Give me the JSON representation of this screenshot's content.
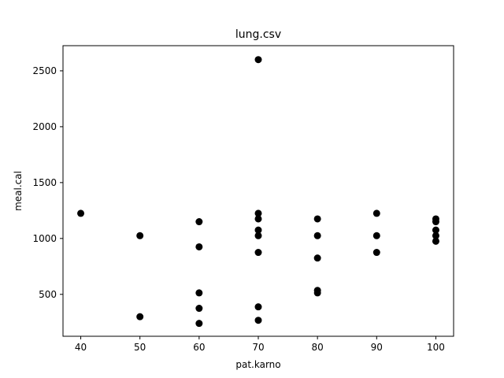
{
  "chart_data": {
    "type": "scatter",
    "title": "lung.csv",
    "xlabel": "pat.karno",
    "ylabel": "meal.cal",
    "xlim": [
      37,
      103
    ],
    "ylim": [
      125,
      2725
    ],
    "xticks": [
      40,
      50,
      60,
      70,
      80,
      90,
      100
    ],
    "yticks": [
      500,
      1000,
      1500,
      2000,
      2500
    ],
    "grid": false,
    "marker_color": "#000000",
    "points": [
      {
        "x": 40,
        "y": 1225
      },
      {
        "x": 50,
        "y": 1025
      },
      {
        "x": 50,
        "y": 300
      },
      {
        "x": 60,
        "y": 1150
      },
      {
        "x": 60,
        "y": 925
      },
      {
        "x": 60,
        "y": 513
      },
      {
        "x": 60,
        "y": 375
      },
      {
        "x": 60,
        "y": 240
      },
      {
        "x": 70,
        "y": 2600
      },
      {
        "x": 70,
        "y": 1225
      },
      {
        "x": 70,
        "y": 1175
      },
      {
        "x": 70,
        "y": 1075
      },
      {
        "x": 70,
        "y": 1025
      },
      {
        "x": 70,
        "y": 875
      },
      {
        "x": 70,
        "y": 388
      },
      {
        "x": 70,
        "y": 268
      },
      {
        "x": 80,
        "y": 1175
      },
      {
        "x": 80,
        "y": 1025
      },
      {
        "x": 80,
        "y": 825
      },
      {
        "x": 80,
        "y": 535
      },
      {
        "x": 80,
        "y": 513
      },
      {
        "x": 90,
        "y": 1225
      },
      {
        "x": 90,
        "y": 1025
      },
      {
        "x": 90,
        "y": 875
      },
      {
        "x": 100,
        "y": 1175
      },
      {
        "x": 100,
        "y": 1150
      },
      {
        "x": 100,
        "y": 1075
      },
      {
        "x": 100,
        "y": 1025
      },
      {
        "x": 100,
        "y": 975
      }
    ]
  }
}
